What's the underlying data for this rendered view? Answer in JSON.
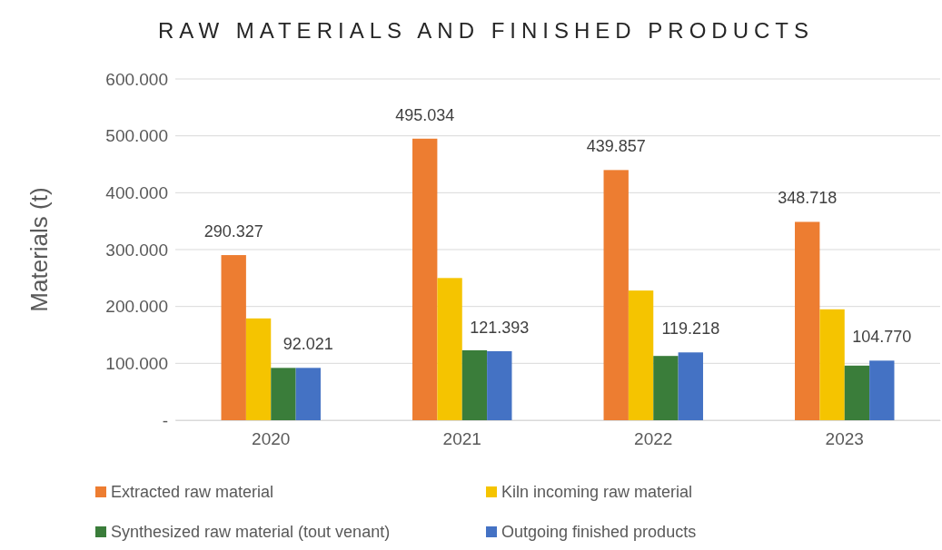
{
  "chart_data": {
    "type": "bar",
    "title": "RAW MATERIALS AND FINISHED PRODUCTS",
    "ylabel": "Materials (t)",
    "categories": [
      "2020",
      "2021",
      "2022",
      "2023"
    ],
    "series": [
      {
        "name": "Extracted raw material",
        "color": "#ed7d31",
        "values": [
          290327,
          495034,
          439857,
          348718
        ],
        "value_labels": [
          "290.327",
          "495.034",
          "439.857",
          "348.718"
        ]
      },
      {
        "name": "Kiln incoming raw material",
        "color": "#f5c400",
        "values": [
          179000,
          250000,
          228000,
          195000
        ]
      },
      {
        "name": "Synthesized raw material (tout venant)",
        "color": "#3a7d3a",
        "values": [
          92000,
          123000,
          113000,
          96000
        ]
      },
      {
        "name": "Outgoing finished products",
        "color": "#4472c4",
        "values": [
          92021,
          121393,
          119218,
          104770
        ],
        "value_labels": [
          "92.021",
          "121.393",
          "119.218",
          "104.770"
        ]
      }
    ],
    "ylim": [
      0,
      600000
    ],
    "yticks": [
      {
        "value": 0,
        "label": "-"
      },
      {
        "value": 100000,
        "label": "100.000"
      },
      {
        "value": 200000,
        "label": "200.000"
      },
      {
        "value": 300000,
        "label": "300.000"
      },
      {
        "value": 400000,
        "label": "400.000"
      },
      {
        "value": 500000,
        "label": "500.000"
      },
      {
        "value": 600000,
        "label": "600.000"
      }
    ],
    "grid": "y",
    "legend": "bottom"
  }
}
